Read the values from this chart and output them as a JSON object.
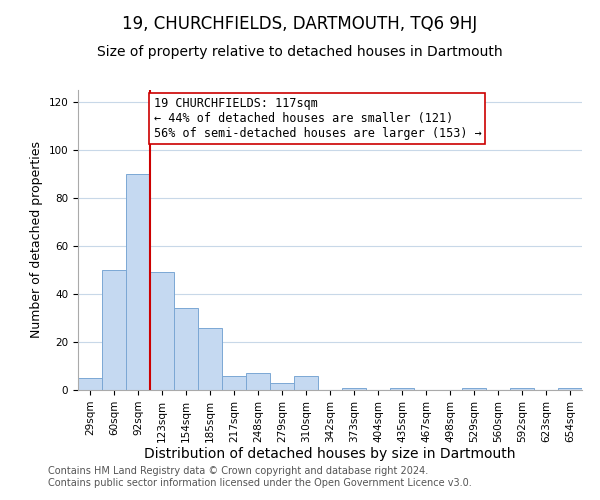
{
  "title": "19, CHURCHFIELDS, DARTMOUTH, TQ6 9HJ",
  "subtitle": "Size of property relative to detached houses in Dartmouth",
  "xlabel": "Distribution of detached houses by size in Dartmouth",
  "ylabel": "Number of detached properties",
  "bar_labels": [
    "29sqm",
    "60sqm",
    "92sqm",
    "123sqm",
    "154sqm",
    "185sqm",
    "217sqm",
    "248sqm",
    "279sqm",
    "310sqm",
    "342sqm",
    "373sqm",
    "404sqm",
    "435sqm",
    "467sqm",
    "498sqm",
    "529sqm",
    "560sqm",
    "592sqm",
    "623sqm",
    "654sqm"
  ],
  "bar_heights": [
    5,
    50,
    90,
    49,
    34,
    26,
    6,
    7,
    3,
    6,
    0,
    1,
    0,
    1,
    0,
    0,
    1,
    0,
    1,
    0,
    1
  ],
  "bar_color": "#c5d9f1",
  "bar_edge_color": "#7ba7d4",
  "vline_color": "#cc0000",
  "annotation_text": "19 CHURCHFIELDS: 117sqm\n← 44% of detached houses are smaller (121)\n56% of semi-detached houses are larger (153) →",
  "annotation_box_color": "#ffffff",
  "annotation_box_edge": "#cc0000",
  "ylim": [
    0,
    125
  ],
  "yticks": [
    0,
    20,
    40,
    60,
    80,
    100,
    120
  ],
  "footer_line1": "Contains HM Land Registry data © Crown copyright and database right 2024.",
  "footer_line2": "Contains public sector information licensed under the Open Government Licence v3.0.",
  "bg_color": "#ffffff",
  "grid_color": "#c8d8e8",
  "title_fontsize": 12,
  "subtitle_fontsize": 10,
  "xlabel_fontsize": 10,
  "ylabel_fontsize": 9,
  "tick_fontsize": 7.5,
  "annotation_fontsize": 8.5,
  "footer_fontsize": 7
}
